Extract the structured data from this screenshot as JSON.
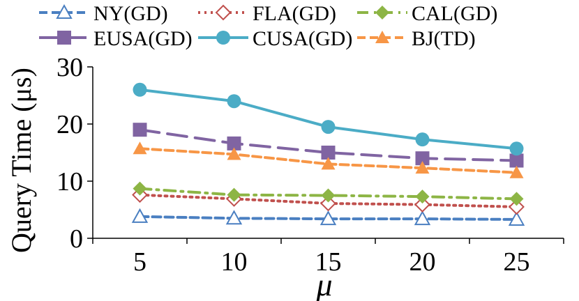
{
  "chart_data": {
    "type": "line",
    "title": "",
    "xlabel": "μ",
    "ylabel": "Query Time (μs)",
    "x": [
      5,
      10,
      15,
      20,
      25
    ],
    "x_tick_labels": [
      "5",
      "10",
      "15",
      "20",
      "25"
    ],
    "ylim": [
      0,
      30
    ],
    "y_ticks": [
      0,
      10,
      20,
      30
    ],
    "y_tick_labels": [
      "0",
      "10",
      "20",
      "30"
    ],
    "grid": false,
    "legend_position": "top",
    "series": [
      {
        "name": "NY(GD)",
        "values": [
          3.8,
          3.5,
          3.4,
          3.4,
          3.3
        ],
        "color": "#4a7fc1",
        "marker": "triangle-open",
        "dash": "dash"
      },
      {
        "name": "FLA(GD)",
        "values": [
          7.6,
          6.9,
          6.1,
          5.9,
          5.5
        ],
        "color": "#c0504d",
        "marker": "diamond-open",
        "dash": "dot"
      },
      {
        "name": "CAL(GD)",
        "values": [
          8.7,
          7.6,
          7.5,
          7.3,
          6.9
        ],
        "color": "#8db545",
        "marker": "diamond",
        "dash": "dashdot"
      },
      {
        "name": "EUSA(GD)",
        "values": [
          19.0,
          16.6,
          15.0,
          14.0,
          13.6
        ],
        "color": "#8064a2",
        "marker": "square",
        "dash": "longdash"
      },
      {
        "name": "CUSA(GD)",
        "values": [
          26.0,
          24.0,
          19.5,
          17.3,
          15.7
        ],
        "color": "#4bacc6",
        "marker": "circle",
        "dash": "solid"
      },
      {
        "name": "BJ(TD)",
        "values": [
          15.7,
          14.7,
          13.0,
          12.3,
          11.5
        ],
        "color": "#f79646",
        "marker": "triangle",
        "dash": "dash"
      }
    ]
  }
}
